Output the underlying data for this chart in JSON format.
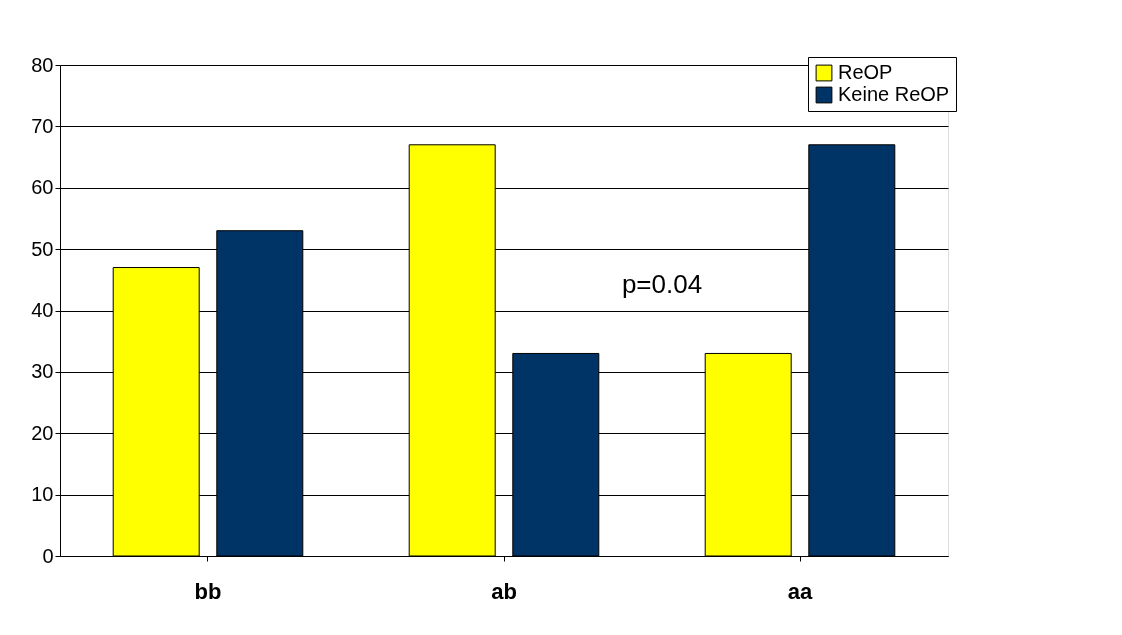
{
  "chart_data": {
    "type": "bar",
    "categories": [
      "bb",
      "ab",
      "aa"
    ],
    "series": [
      {
        "name": "ReOP",
        "color": "#ffff00",
        "values": [
          47,
          67,
          33
        ]
      },
      {
        "name": "Keine ReOP",
        "color": "#003366",
        "values": [
          53,
          33,
          67
        ]
      }
    ],
    "ylim": [
      0,
      80
    ],
    "yticks": [
      0,
      10,
      20,
      30,
      40,
      50,
      60,
      70,
      80
    ],
    "grid": "y",
    "legend": "top right",
    "annotations": [
      "p=0.04"
    ]
  }
}
